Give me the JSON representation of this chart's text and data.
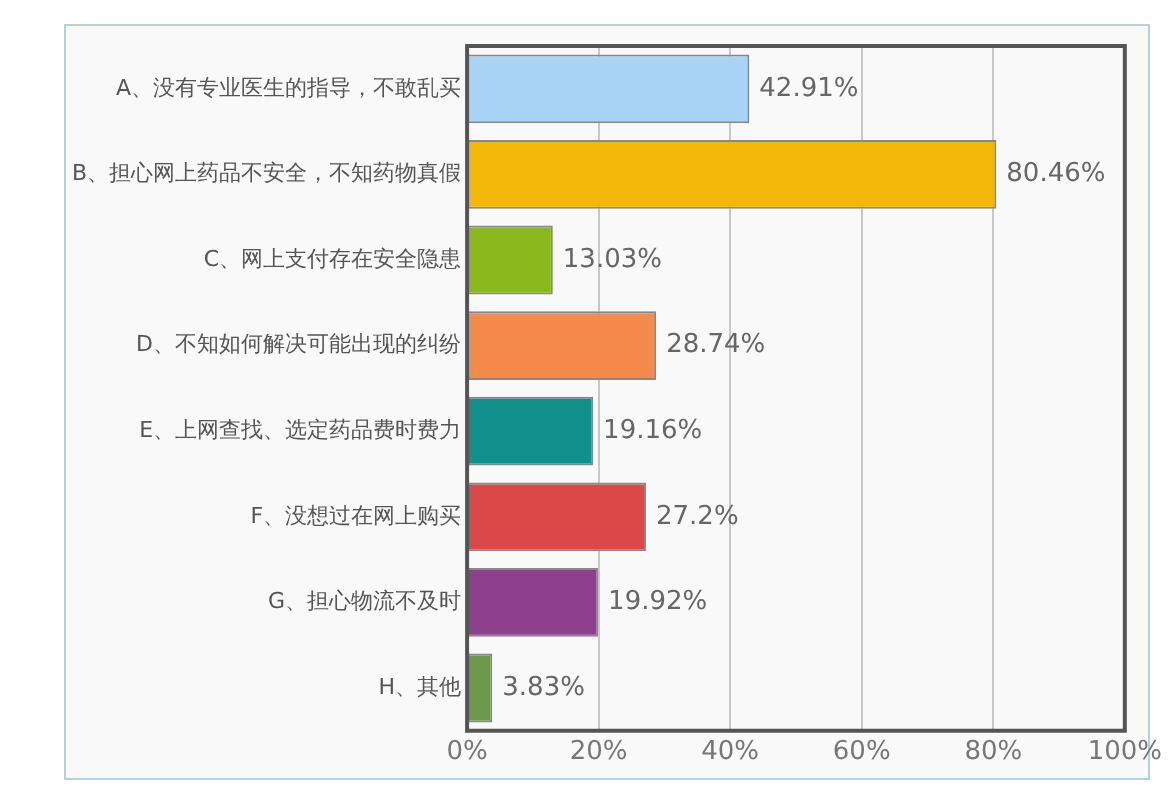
{
  "chart_data": {
    "type": "bar",
    "orientation": "horizontal",
    "categories": [
      "A、没有专业医生的指导，不敢乱买",
      "B、担心网上药品不安全，不知药物真假",
      "C、网上支付存在安全隐患",
      "D、不知如何解决可能出现的纠纷",
      "E、上网查找、选定药品费时费力",
      "F、没想过在网上购买",
      "G、担心物流不及时",
      "H、其他"
    ],
    "values": [
      42.91,
      80.46,
      13.03,
      28.74,
      19.16,
      27.2,
      19.92,
      3.83
    ],
    "value_labels": [
      "42.91%",
      "80.46%",
      "13.03%",
      "28.74%",
      "19.16%",
      "27.2%",
      "19.92%",
      "3.83%"
    ],
    "colors": [
      "#a9d3f5",
      "#f2b807",
      "#8ab81d",
      "#f48a4b",
      "#12908e",
      "#da4848",
      "#8e3f8e",
      "#6c9a4a"
    ],
    "xlim": [
      0,
      100
    ],
    "xticks": [
      {
        "value": 0,
        "label": "0%"
      },
      {
        "value": 20,
        "label": "20%"
      },
      {
        "value": 40,
        "label": "40%"
      },
      {
        "value": 60,
        "label": "60%"
      },
      {
        "value": 80,
        "label": "80%"
      },
      {
        "value": 100,
        "label": "100%"
      }
    ],
    "grid": "x",
    "legend": false
  }
}
